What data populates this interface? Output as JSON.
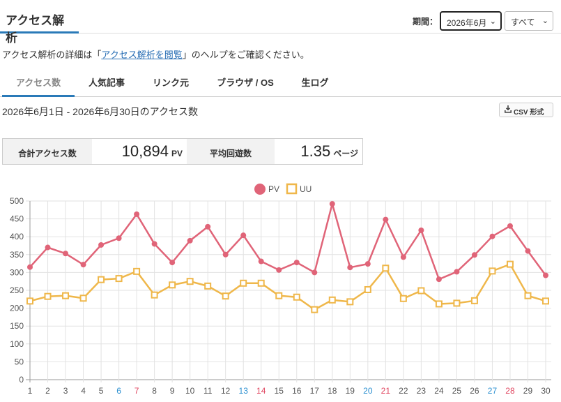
{
  "header": {
    "title": "アクセス解析",
    "period_label": "期間：",
    "period_selected": "2026年6月",
    "filter_selected": "すべて"
  },
  "help": {
    "prefix": "アクセス解析の詳細は「",
    "link": "アクセス解析を閲覧",
    "suffix": "」のヘルプをご確認ください。"
  },
  "tabs": [
    {
      "label": "アクセス数",
      "active": true
    },
    {
      "label": "人気記事",
      "active": false
    },
    {
      "label": "リンク元",
      "active": false
    },
    {
      "label": "ブラウザ / OS",
      "active": false
    },
    {
      "label": "生ログ",
      "active": false
    }
  ],
  "range_text": "2026年6月1日 - 2026年6月30日のアクセス数",
  "csv_label": "CSV 形式",
  "stats": {
    "total_label": "合計アクセス数",
    "total_value": "10,894",
    "total_unit": "PV",
    "avg_label": "平均回遊数",
    "avg_value": "1.35",
    "avg_unit": "ページ"
  },
  "icons": {
    "download": "download-icon",
    "select_arrow": "chevron-down-icon"
  },
  "colors": {
    "pv": "#e06478",
    "uu": "#efb74a",
    "accent": "#2a7ab8",
    "saturday": "#2a8fd0",
    "sunday": "#e0455f"
  },
  "chart_data": {
    "type": "line",
    "x": [
      1,
      2,
      3,
      4,
      5,
      6,
      7,
      8,
      9,
      10,
      11,
      12,
      13,
      14,
      15,
      16,
      17,
      18,
      19,
      20,
      21,
      22,
      23,
      24,
      25,
      26,
      27,
      28,
      29,
      30
    ],
    "saturdays": [
      6,
      13,
      20,
      27
    ],
    "sundays": [
      7,
      14,
      21,
      28
    ],
    "series": [
      {
        "name": "PV",
        "values": [
          315,
          370,
          353,
          322,
          377,
          396,
          463,
          380,
          328,
          389,
          428,
          350,
          404,
          331,
          307,
          328,
          300,
          492,
          314,
          324,
          448,
          343,
          418,
          281,
          302,
          349,
          401,
          430,
          360,
          292
        ]
      },
      {
        "name": "UU",
        "values": [
          220,
          233,
          235,
          228,
          280,
          283,
          303,
          237,
          265,
          275,
          262,
          234,
          270,
          270,
          235,
          231,
          196,
          223,
          218,
          252,
          312,
          227,
          249,
          212,
          214,
          221,
          304,
          323,
          235,
          220
        ]
      }
    ],
    "ylim": [
      0,
      500
    ],
    "yticks": [
      0,
      50,
      100,
      150,
      200,
      250,
      300,
      350,
      400,
      450,
      500
    ],
    "grid": true,
    "legend": "top-center"
  }
}
